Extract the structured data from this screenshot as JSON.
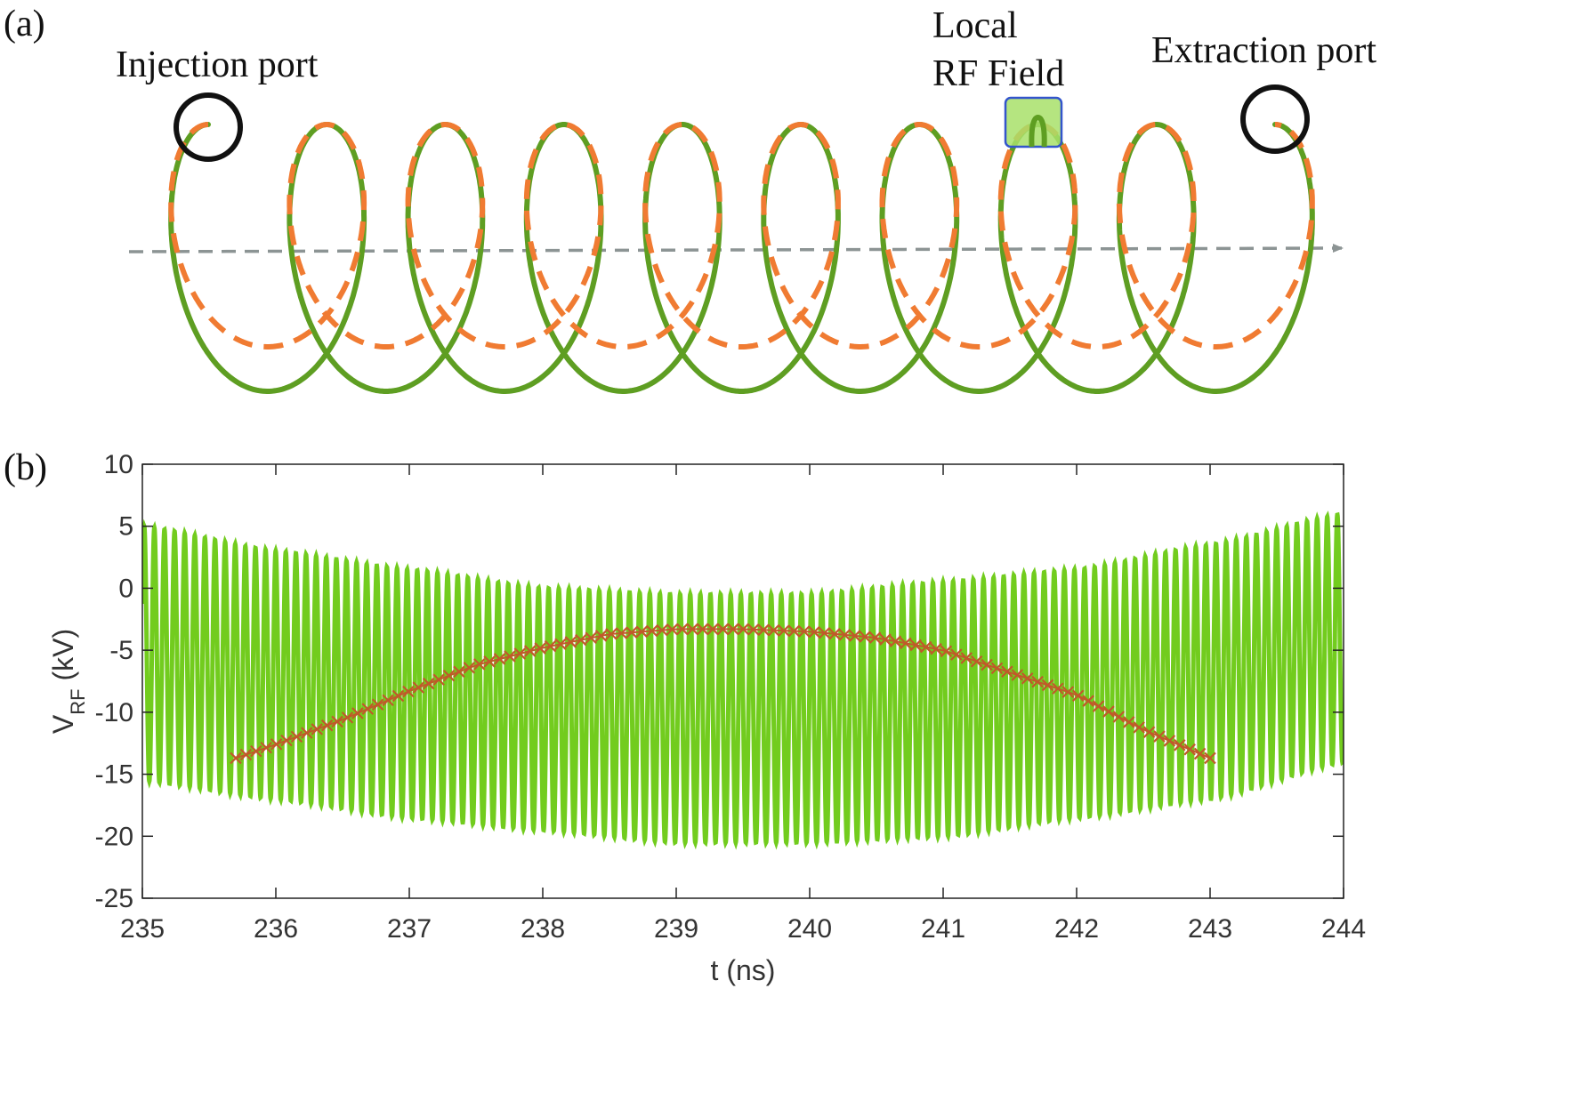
{
  "panel_a": {
    "tag": "(a)",
    "labels": {
      "injection": "Injection port",
      "local_line1": "Local",
      "local_line2": "RF Field",
      "extraction": "Extraction port"
    },
    "colors": {
      "solid_path": "#5e9e22",
      "dashed_path": "#f07b32",
      "axis_arrow": "#8c9494",
      "port_circle": "#111111",
      "rf_box_fill": "#a8e06a",
      "rf_box_stroke": "#3355cc"
    }
  },
  "panel_b": {
    "tag": "(b)"
  },
  "chart_data": {
    "type": "line",
    "title": "",
    "xlabel": "t (ns)",
    "ylabel_main": "V",
    "ylabel_sub": "RF",
    "ylabel_unit": " (kV)",
    "xlim": [
      235,
      244
    ],
    "ylim": [
      -25,
      10
    ],
    "xticks": [
      235,
      236,
      237,
      238,
      239,
      240,
      241,
      242,
      243,
      244
    ],
    "yticks": [
      10,
      5,
      0,
      -5,
      -10,
      -15,
      -20,
      -25
    ],
    "series": [
      {
        "style": "oscillation",
        "color": "#72cc1e",
        "cycles_per_ns": 13.2,
        "t": [
          235,
          236,
          237,
          238,
          239,
          240,
          241,
          242,
          243,
          244
        ],
        "upper": [
          5,
          3,
          1.5,
          0,
          -0.5,
          -0.5,
          0.5,
          1.5,
          3.5,
          6
        ],
        "lower": [
          -15.5,
          -17,
          -18.5,
          -19.5,
          -20.5,
          -20.5,
          -20,
          -18.5,
          -17,
          -14
        ]
      },
      {
        "style": "markers",
        "color": "#c05a2a",
        "marker": "x",
        "x": [
          235.7,
          236,
          236.5,
          237,
          237.5,
          238,
          238.5,
          239,
          239.5,
          240,
          240.5,
          241,
          241.5,
          242,
          242.5,
          243
        ],
        "y": [
          -13.7,
          -12.6,
          -10.6,
          -8.3,
          -6.2,
          -4.8,
          -3.7,
          -3.3,
          -3.3,
          -3.5,
          -4.0,
          -5.0,
          -6.8,
          -8.6,
          -11.4,
          -13.7
        ]
      }
    ]
  }
}
